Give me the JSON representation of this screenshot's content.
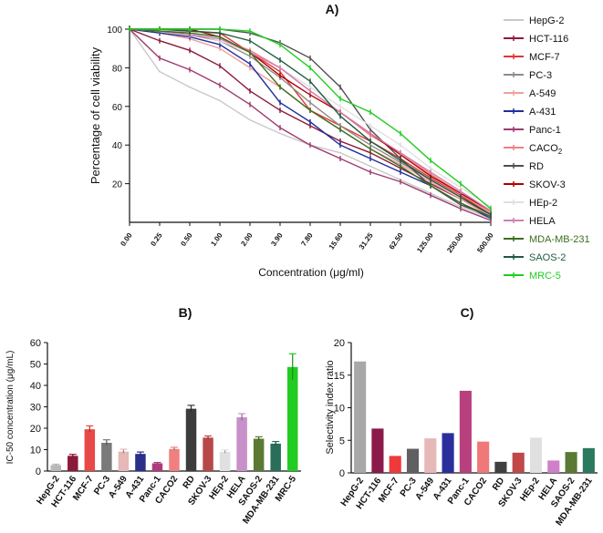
{
  "chart_data": [
    {
      "panel_label": "A)",
      "type": "line",
      "title": "",
      "xlabel": "Concentration (μg/ml)",
      "ylabel": "Percentage of cell viability",
      "categories": [
        "0.00",
        "0.25",
        "0.50",
        "1.00",
        "2.00",
        "3.90",
        "7.80",
        "15.60",
        "31.25",
        "62.50",
        "125.00",
        "250.00",
        "500.00"
      ],
      "ylim": [
        0,
        100
      ],
      "yticks": [
        20,
        40,
        60,
        80,
        100
      ],
      "legend_position": "right",
      "series": [
        {
          "name": "HepG-2",
          "label_main": "HepG-2",
          "label_sub": "",
          "color": "#c8c8c8",
          "marker": "none",
          "values": [
            100,
            78,
            70,
            63,
            53,
            46,
            40,
            36,
            29,
            22,
            15,
            8,
            2
          ]
        },
        {
          "name": "HCT-116",
          "label_main": "HCT-116",
          "label_sub": "",
          "color": "#8b1a3a",
          "marker": "tick",
          "values": [
            100,
            94,
            89,
            81,
            68,
            58,
            50,
            42,
            36,
            28,
            20,
            12,
            4
          ]
        },
        {
          "name": "MCF-7",
          "label_main": "MCF-7",
          "label_sub": "",
          "color": "#e03838",
          "marker": "tick",
          "values": [
            100,
            100,
            99,
            98,
            88,
            78,
            58,
            50,
            42,
            33,
            23,
            14,
            4
          ]
        },
        {
          "name": "PC-3",
          "label_main": "PC-3",
          "label_sub": "",
          "color": "#8c8c8c",
          "marker": "tick",
          "values": [
            100,
            99,
            97,
            94,
            86,
            75,
            62,
            50,
            40,
            31,
            22,
            13,
            4
          ]
        },
        {
          "name": "A-549",
          "label_main": "A-549",
          "label_sub": "",
          "color": "#f0a0a0",
          "marker": "tick",
          "values": [
            100,
            98,
            95,
            90,
            80,
            70,
            58,
            48,
            38,
            30,
            21,
            12,
            3
          ]
        },
        {
          "name": "A-431",
          "label_main": "A-431",
          "label_sub": "",
          "color": "#1f2f9c",
          "marker": "tick",
          "values": [
            100,
            98,
            96,
            92,
            82,
            62,
            52,
            40,
            33,
            26,
            19,
            10,
            2
          ]
        },
        {
          "name": "Panc-1",
          "label_main": "Panc-1",
          "label_sub": "",
          "color": "#9e3b6e",
          "marker": "tick",
          "values": [
            100,
            85,
            79,
            71,
            61,
            49,
            40,
            33,
            26,
            21,
            14,
            7,
            1
          ]
        },
        {
          "name": "CACO2",
          "label_main": "CACO",
          "label_sub": "2",
          "color": "#f08080",
          "marker": "tick",
          "values": [
            100,
            99,
            97,
            95,
            89,
            80,
            68,
            57,
            45,
            36,
            25,
            15,
            5
          ]
        },
        {
          "name": "RD",
          "label_main": "RD",
          "label_sub": "",
          "color": "#505050",
          "marker": "tick",
          "values": [
            100,
            100,
            100,
            100,
            98,
            93,
            85,
            70,
            48,
            33,
            19,
            9,
            3
          ]
        },
        {
          "name": "SKOV-3",
          "label_main": "SKOV-3",
          "label_sub": "",
          "color": "#b00000",
          "marker": "tick",
          "values": [
            100,
            100,
            100,
            96,
            88,
            76,
            66,
            57,
            46,
            35,
            24,
            15,
            6
          ]
        },
        {
          "name": "HEp-2",
          "label_main": "HEp-2",
          "label_sub": "",
          "color": "#e0e0e0",
          "marker": "tick",
          "values": [
            100,
            100,
            98,
            94,
            88,
            80,
            70,
            60,
            50,
            40,
            28,
            18,
            8
          ]
        },
        {
          "name": "HELA",
          "label_main": "HELA",
          "label_sub": "",
          "color": "#d080b0",
          "marker": "tick",
          "values": [
            100,
            99,
            97,
            95,
            88,
            80,
            68,
            57,
            46,
            36,
            26,
            16,
            6
          ]
        },
        {
          "name": "MDA-MB-231",
          "label_main": "MDA-MB-231",
          "label_sub": "",
          "color": "#3d6e1e",
          "marker": "tick",
          "values": [
            100,
            99,
            98,
            96,
            88,
            70,
            58,
            48,
            38,
            29,
            19,
            10,
            3
          ]
        },
        {
          "name": "SAOS-2",
          "label_main": "SAOS-2",
          "label_sub": "",
          "color": "#1e5a40",
          "marker": "tick",
          "values": [
            100,
            100,
            99,
            98,
            94,
            84,
            73,
            55,
            42,
            32,
            22,
            13,
            4
          ]
        },
        {
          "name": "MRC-5",
          "label_main": "MRC-5",
          "label_sub": "",
          "color": "#22cc22",
          "marker": "tick",
          "values": [
            100,
            100,
            100,
            100,
            99,
            92,
            80,
            64,
            57,
            46,
            32,
            20,
            7
          ]
        }
      ]
    },
    {
      "panel_label": "B)",
      "type": "bar",
      "title": "",
      "xlabel": "",
      "ylabel": "IC-50 concentration (μg/mL)",
      "categories": [
        "HepG-2",
        "HCT-116",
        "MCF-7",
        "PC-3",
        "A-549",
        "A-431",
        "Panc-1",
        "CACO2",
        "RD",
        "SKOV-3",
        "HEp-2",
        "HELA",
        "SAOS-2",
        "MDA-MB-231",
        "MRC-5"
      ],
      "values": [
        2.8,
        7.1,
        19.5,
        13.2,
        9.1,
        8.0,
        3.6,
        10.3,
        29.1,
        15.6,
        9.0,
        25.1,
        15.1,
        12.8,
        48.6
      ],
      "errors": [
        0.4,
        0.7,
        1.6,
        1.4,
        1.1,
        0.9,
        0.4,
        0.8,
        1.6,
        0.8,
        0.9,
        1.7,
        0.9,
        1.0,
        6.2
      ],
      "colors": [
        "#b8b8b8",
        "#8b1a3a",
        "#e84848",
        "#7a7a7a",
        "#e6b8b8",
        "#2a2f8c",
        "#b03a7e",
        "#f08080",
        "#3c3c3c",
        "#b84848",
        "#e0e0e0",
        "#c890c8",
        "#5a7a34",
        "#2a6e5a",
        "#22cc22"
      ],
      "ylim": [
        0,
        60
      ],
      "yticks": [
        0,
        10,
        20,
        30,
        40,
        50,
        60
      ]
    },
    {
      "panel_label": "C)",
      "type": "bar",
      "title": "",
      "xlabel": "",
      "ylabel": "Selectivity index ratio",
      "categories": [
        "HepG-2",
        "HCT-116",
        "MCF-7",
        "PC-3",
        "A-549",
        "A-431",
        "Panc-1",
        "CACO2",
        "RD",
        "SKOV-3",
        "HEp-2",
        "HELA",
        "SAOS-2",
        "MDA-MB-231"
      ],
      "values": [
        17.1,
        6.8,
        2.6,
        3.7,
        5.3,
        6.1,
        12.6,
        4.8,
        1.7,
        3.1,
        5.4,
        1.9,
        3.2,
        3.8
      ],
      "colors": [
        "#a8a8a8",
        "#8b1a4a",
        "#ee3a3a",
        "#606060",
        "#e6b8b8",
        "#2a2f9c",
        "#b8407e",
        "#f07878",
        "#404040",
        "#c04848",
        "#e0e0e0",
        "#d080c8",
        "#5a7a34",
        "#2a7a60"
      ],
      "ylim": [
        0,
        20
      ],
      "yticks": [
        0,
        5,
        10,
        15,
        20
      ]
    }
  ]
}
